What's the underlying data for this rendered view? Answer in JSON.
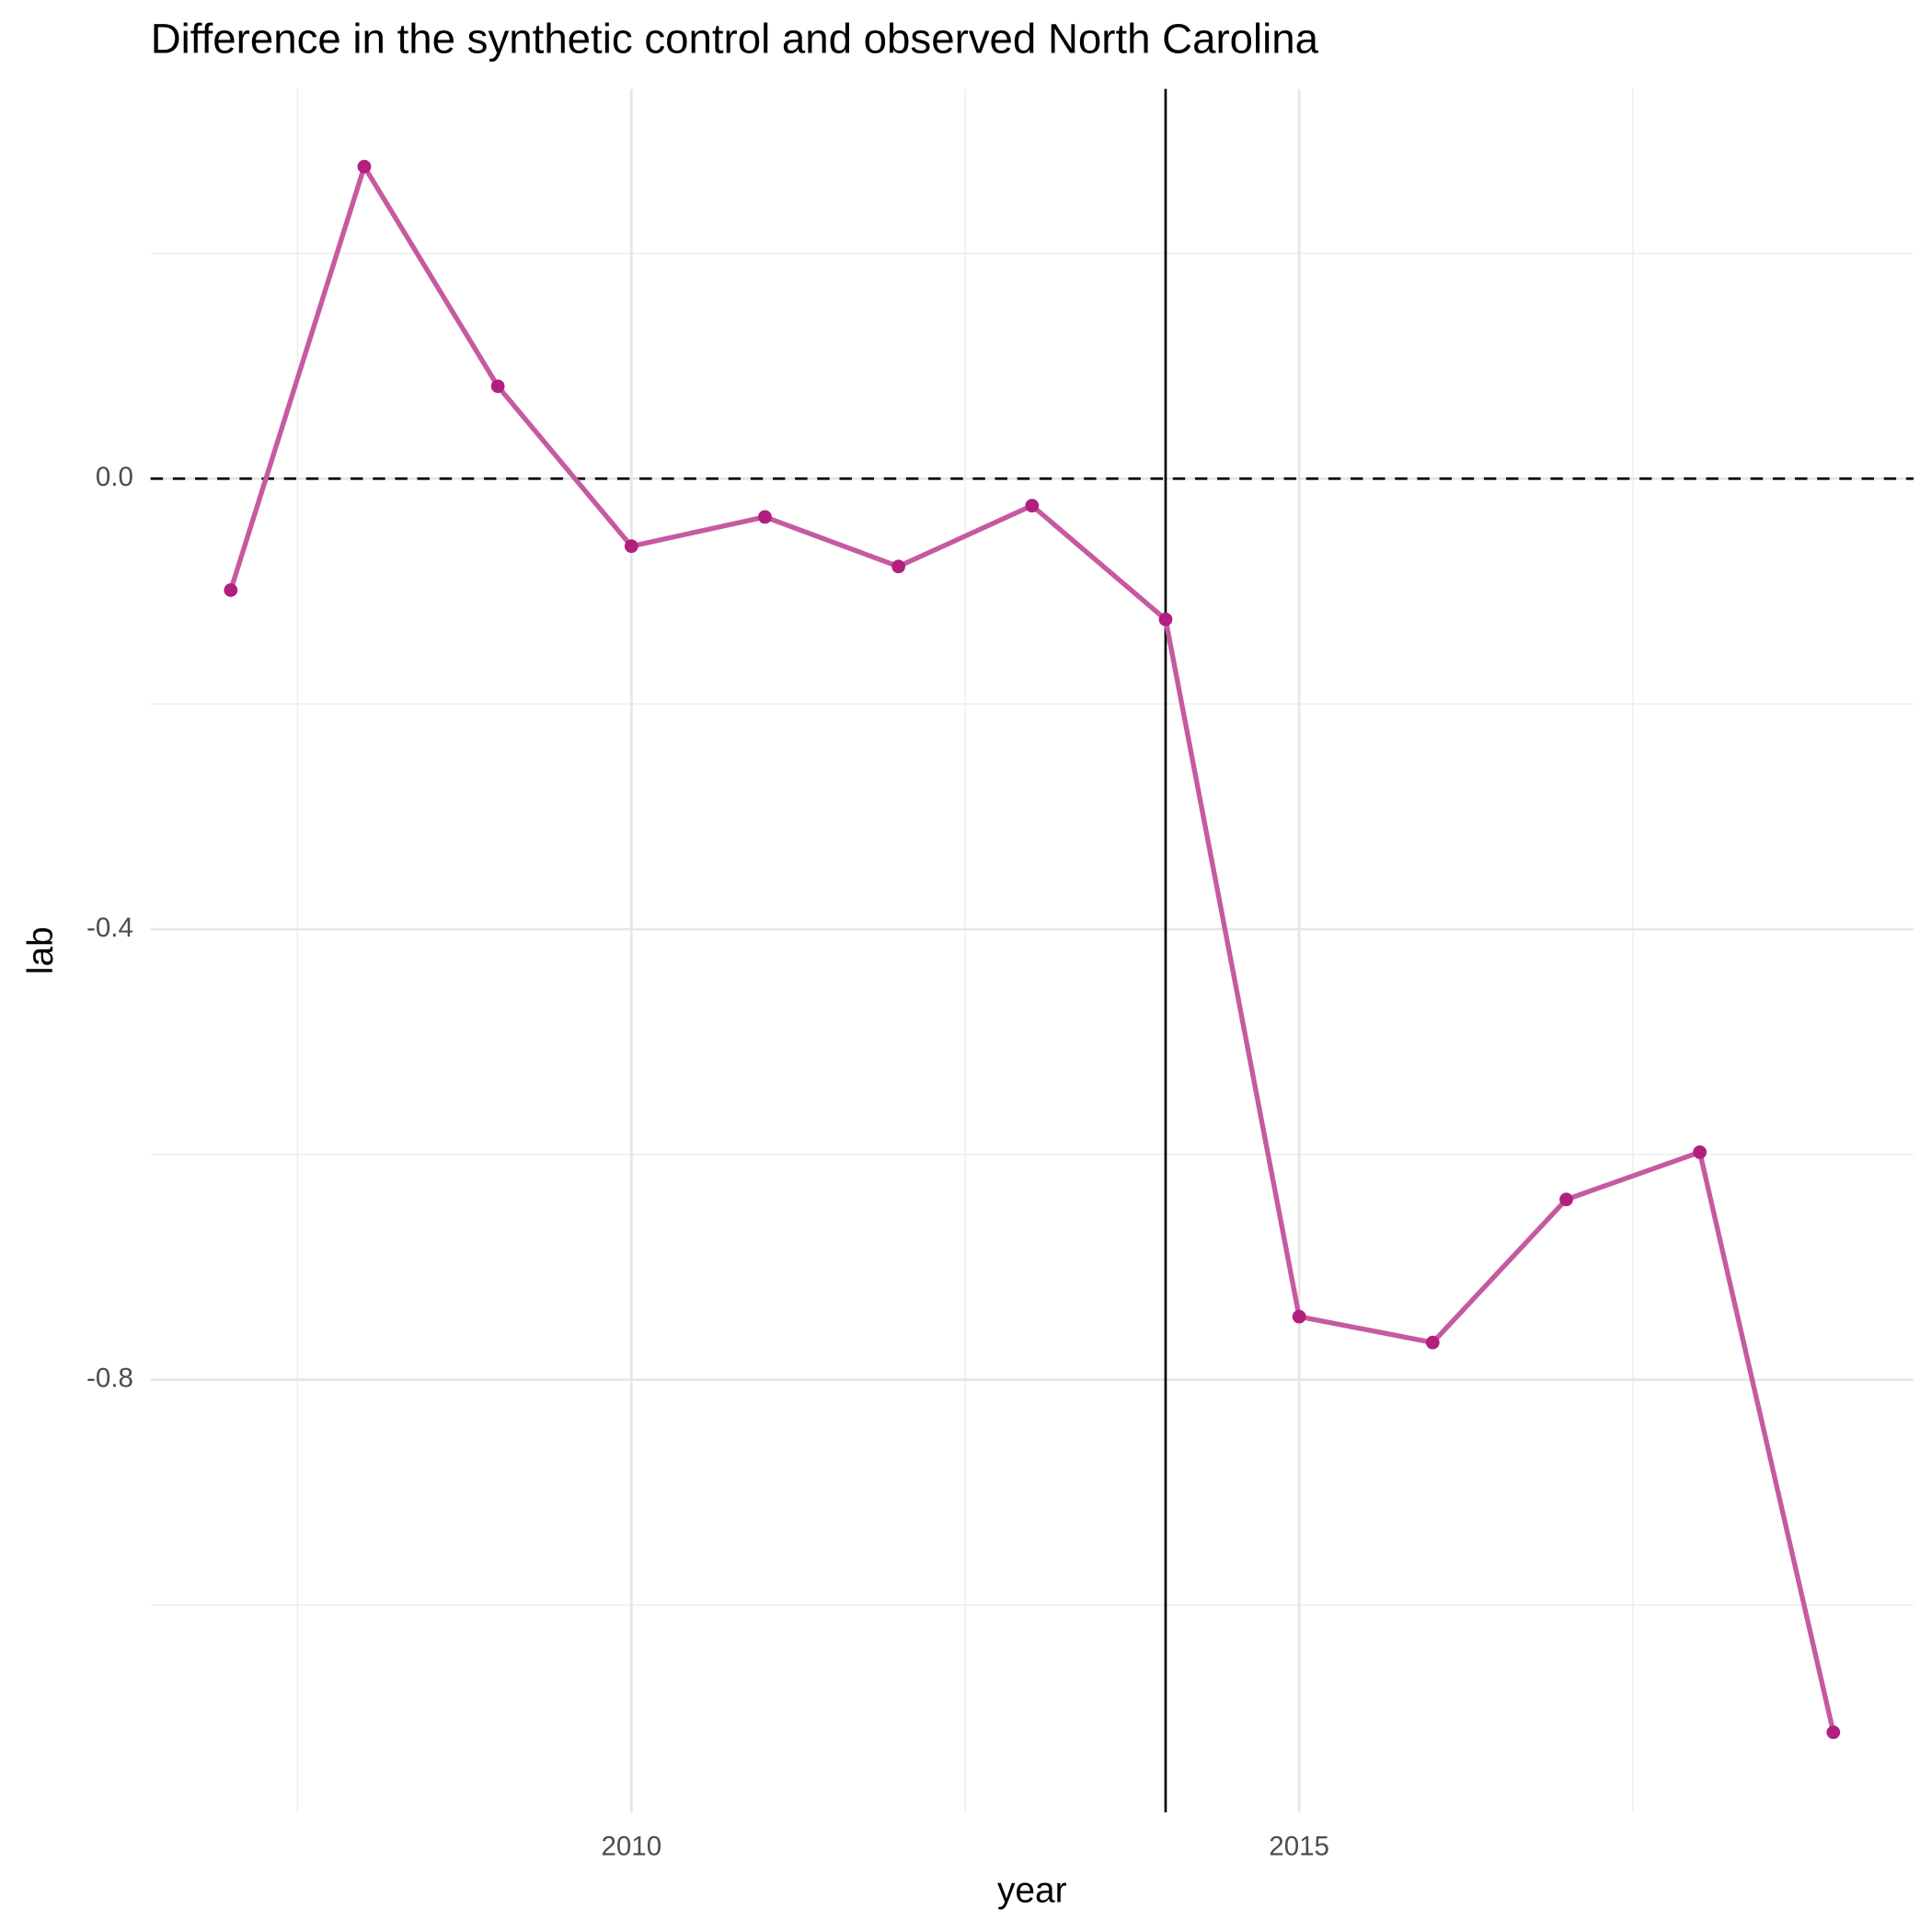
{
  "chart_data": {
    "type": "line",
    "title": "Difference in the synthetic control and observed North Carolina",
    "x_label": "year",
    "y_label": "lab",
    "x": [
      2007,
      2008,
      2009,
      2010,
      2011,
      2012,
      2013,
      2014,
      2015,
      2016,
      2017,
      2018,
      2019
    ],
    "series": [
      {
        "name": "lab",
        "color": "#c65aa0",
        "point_color": "#b21f7f",
        "values": [
          -0.099,
          0.277,
          0.082,
          -0.06,
          -0.034,
          -0.078,
          -0.024,
          -0.125,
          -0.744,
          -0.767,
          -0.64,
          -0.598,
          -1.113
        ]
      }
    ],
    "xlim": [
      2006.4,
      2019.6
    ],
    "xticks": [
      2010,
      2015
    ],
    "x_minor_grid": [
      2007.5,
      2012.5,
      2017.5
    ],
    "ylim": [
      -1.184,
      0.346
    ],
    "yticks": [
      {
        "value": 0,
        "label": "0.0"
      },
      -0.4,
      -0.8
    ],
    "y_minor_grid": [
      0.2,
      -0.2,
      -0.6,
      -1.0
    ],
    "vlines": [
      2014
    ],
    "hlines": [
      0
    ],
    "grid": true
  }
}
